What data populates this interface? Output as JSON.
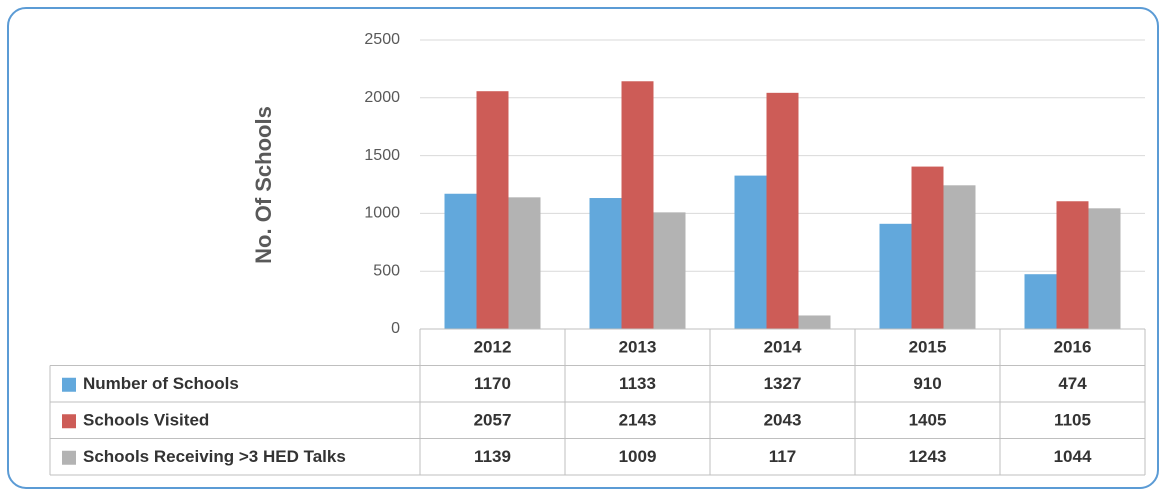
{
  "chart_data": {
    "type": "bar",
    "y_label": "No. Of Schools",
    "categories": [
      "2012",
      "2013",
      "2014",
      "2015",
      "2016"
    ],
    "series": [
      {
        "name": "Number of Schools",
        "color": "#62a8dc",
        "values": [
          1170,
          1133,
          1327,
          910,
          474
        ]
      },
      {
        "name": "Schools Visited",
        "color": "#cd5c57",
        "values": [
          2057,
          2143,
          2043,
          1405,
          1105
        ]
      },
      {
        "name": "Schools Receiving >3 HED Talks",
        "color": "#b3b3b3",
        "values": [
          1139,
          1009,
          117,
          1243,
          1044
        ]
      }
    ],
    "ylim": [
      0,
      2500
    ],
    "yticks": [
      0,
      500,
      1000,
      1500,
      2000,
      2500
    ],
    "grid": true
  }
}
